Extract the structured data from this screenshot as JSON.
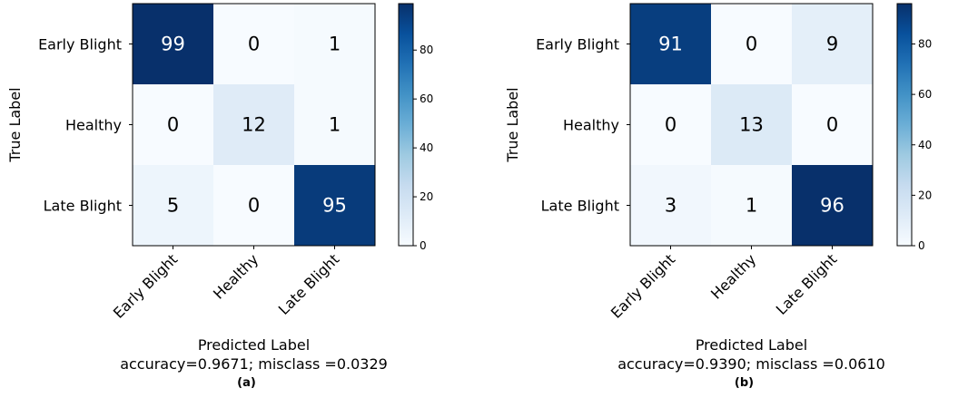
{
  "chart_data": [
    {
      "type": "heatmap",
      "panel_label": "(a)",
      "row_labels": [
        "Early Blight",
        "Healthy",
        "Late Blight"
      ],
      "col_labels": [
        "Early Blight",
        "Healthy",
        "Late Blight"
      ],
      "values": [
        [
          99,
          0,
          1
        ],
        [
          0,
          12,
          1
        ],
        [
          5,
          0,
          95
        ]
      ],
      "ylabel": "True Label",
      "xlabel": "Predicted Label",
      "summary": "accuracy=0.9671; misclass =0.0329",
      "colorbar": {
        "min": 0,
        "max": 99,
        "ticks": [
          0,
          20,
          40,
          60,
          80
        ]
      },
      "colormap": "Blues"
    },
    {
      "type": "heatmap",
      "panel_label": "(b)",
      "row_labels": [
        "Early Blight",
        "Healthy",
        "Late Blight"
      ],
      "col_labels": [
        "Early Blight",
        "Healthy",
        "Late Blight"
      ],
      "values": [
        [
          91,
          0,
          9
        ],
        [
          0,
          13,
          0
        ],
        [
          3,
          1,
          96
        ]
      ],
      "ylabel": "True Label",
      "xlabel": "Predicted Label",
      "summary": "accuracy=0.9390; misclass =0.0610",
      "colorbar": {
        "min": 0,
        "max": 96,
        "ticks": [
          0,
          20,
          40,
          60,
          80
        ]
      },
      "colormap": "Blues"
    }
  ]
}
